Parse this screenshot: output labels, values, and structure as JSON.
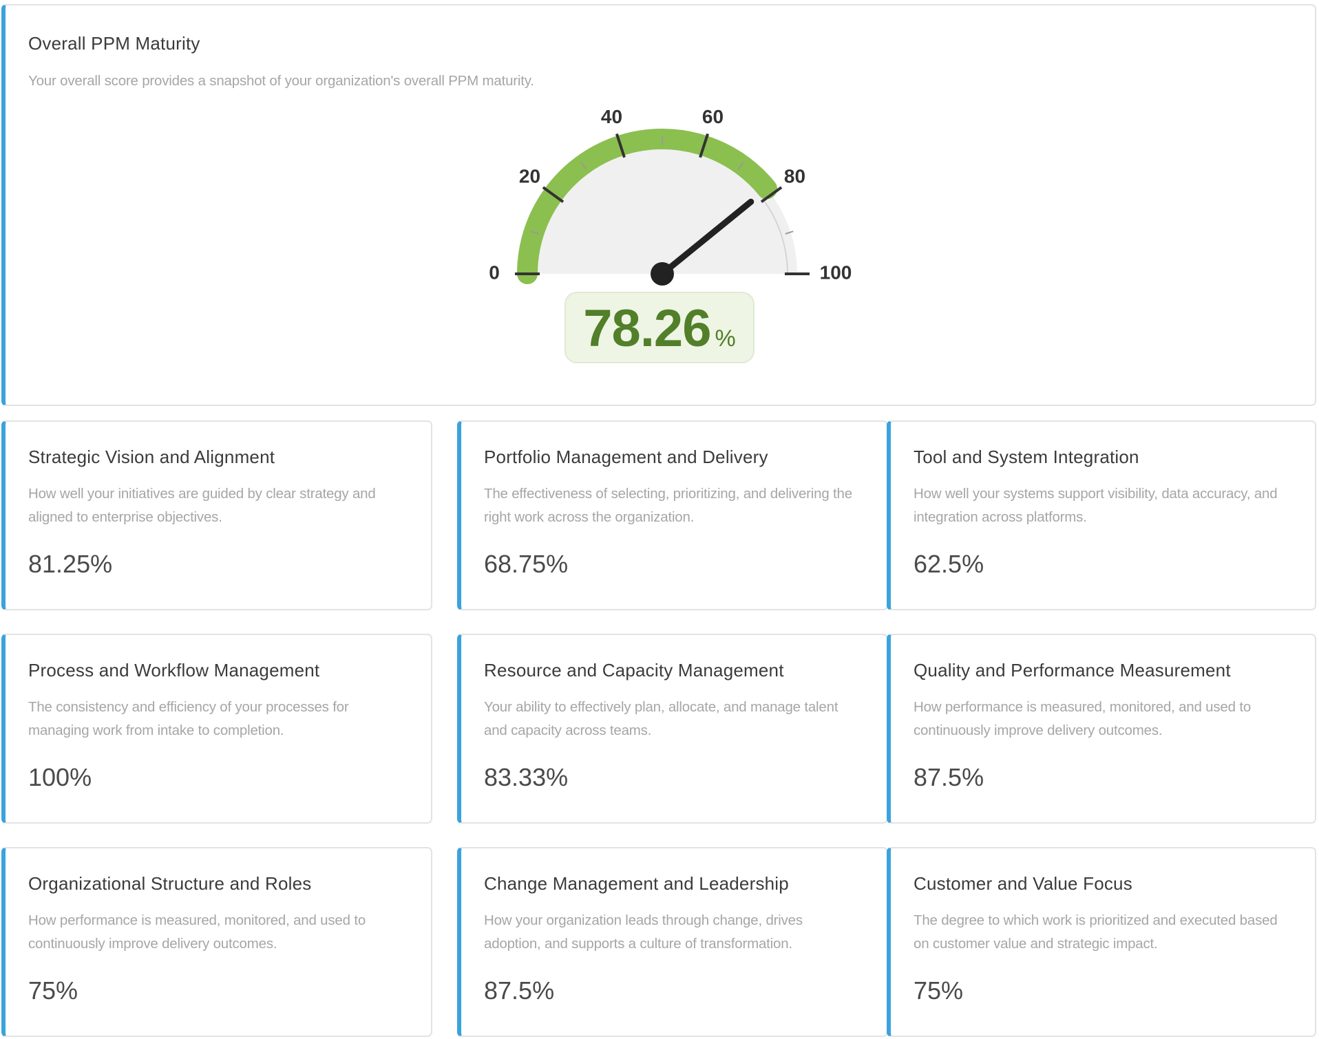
{
  "overall": {
    "title": "Overall PPM Maturity",
    "description": "Your overall score provides a snapshot of your organization's overall PPM maturity.",
    "score": 78.26,
    "score_text": "78.26",
    "unit": "%",
    "gauge": {
      "min": 0,
      "max": 100,
      "tick_labels": [
        "0",
        "20",
        "40",
        "60",
        "80",
        "100"
      ],
      "fill_color": "#8bbf4f",
      "track_color": "#f0f0f0",
      "needle_color": "#222222"
    }
  },
  "categories": [
    {
      "title": "Strategic Vision and Alignment",
      "description": "How well your initiatives are guided by clear strategy and aligned to enterprise objectives.",
      "value": "81.25%"
    },
    {
      "title": "Portfolio Management and Delivery",
      "description": "The effectiveness of selecting, prioritizing, and delivering the right work across the organization.",
      "value": "68.75%"
    },
    {
      "title": "Tool and System Integration",
      "description": "How well your systems support visibility, data accuracy, and integration across platforms.",
      "value": "62.5%"
    },
    {
      "title": "Process and Workflow Management",
      "description": "The consistency and efficiency of your processes for managing work from intake to completion.",
      "value": "100%"
    },
    {
      "title": "Resource and Capacity Management",
      "description": "Your ability to effectively plan, allocate, and manage talent and capacity across teams.",
      "value": "83.33%"
    },
    {
      "title": "Quality and Performance Measurement",
      "description": "How performance is measured, monitored, and used to continuously improve delivery outcomes.",
      "value": "87.5%"
    },
    {
      "title": "Organizational Structure and Roles",
      "description": "How performance is measured, monitored, and used to continuously improve delivery outcomes.",
      "value": "75%"
    },
    {
      "title": "Change Management and Leadership",
      "description": "How your organization leads through change, drives adoption, and supports a culture of transformation.",
      "value": "87.5%"
    },
    {
      "title": "Customer and Value Focus",
      "description": "The degree to which work is prioritized and executed based on customer value and strategic impact.",
      "value": "75%"
    }
  ]
}
